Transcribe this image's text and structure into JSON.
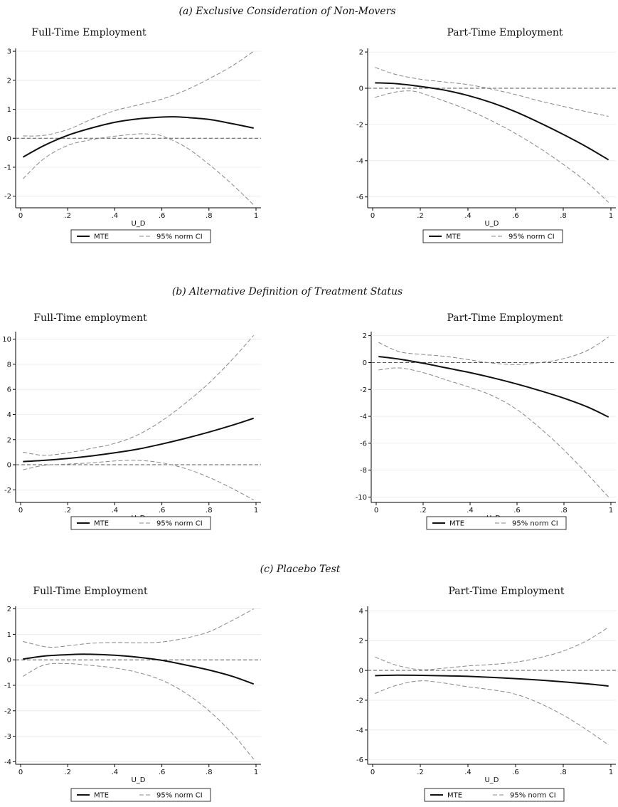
{
  "sections": [
    {
      "label": "(a) Exclusive Consideration of Non-Movers"
    },
    {
      "label": "(b) Alternative Definition of Treatment Status"
    },
    {
      "label": "(c) Placebo Test"
    }
  ],
  "legend": {
    "mte_label": "MTE",
    "ci_label": "95% norm CI"
  },
  "chart_data": [
    {
      "type": "line",
      "section": 0,
      "title": "Full-Time Employment",
      "xlabel": "U_D",
      "ylabel": "",
      "xlim": [
        0,
        1
      ],
      "ylim": [
        -2.4,
        3.1
      ],
      "yticks": [
        -2,
        -1,
        0,
        1,
        2,
        3
      ],
      "ytick_labels": [
        "-2",
        "-1",
        "0",
        "1",
        "2",
        "3"
      ],
      "xticks": [
        0,
        0.2,
        0.4,
        0.6,
        0.8,
        1
      ],
      "xtick_labels": [
        "0",
        ".2",
        ".4",
        ".6",
        ".8",
        "1"
      ],
      "reference_line": 0,
      "series": [
        {
          "name": "MTE",
          "x": [
            0.01,
            0.1,
            0.2,
            0.3,
            0.4,
            0.5,
            0.6,
            0.65,
            0.7,
            0.8,
            0.9,
            0.99
          ],
          "y": [
            -0.65,
            -0.25,
            0.1,
            0.35,
            0.55,
            0.67,
            0.73,
            0.74,
            0.72,
            0.65,
            0.5,
            0.35
          ]
        },
        {
          "name": "95% norm CI",
          "x": [
            0.01,
            0.1,
            0.2,
            0.3,
            0.4,
            0.5,
            0.6,
            0.7,
            0.8,
            0.9,
            0.99
          ],
          "y": [
            0.08,
            0.1,
            0.3,
            0.65,
            0.95,
            1.15,
            1.35,
            1.65,
            2.05,
            2.5,
            3.0
          ]
        },
        {
          "name": "95% norm CI",
          "x": [
            0.01,
            0.1,
            0.2,
            0.3,
            0.4,
            0.5,
            0.55,
            0.6,
            0.7,
            0.8,
            0.9,
            0.99
          ],
          "y": [
            -1.4,
            -0.7,
            -0.25,
            -0.05,
            0.07,
            0.15,
            0.14,
            0.08,
            -0.3,
            -0.9,
            -1.6,
            -2.3
          ]
        }
      ]
    },
    {
      "type": "line",
      "section": 0,
      "title": "Part-Time Employment",
      "xlabel": "U_D",
      "ylabel": "",
      "xlim": [
        0,
        1
      ],
      "ylim": [
        -6.6,
        2.2
      ],
      "yticks": [
        -6,
        -4,
        -2,
        0,
        2
      ],
      "ytick_labels": [
        "-6",
        "-4",
        "-2",
        "0",
        "2"
      ],
      "xticks": [
        0,
        0.2,
        0.4,
        0.6,
        0.8,
        1
      ],
      "xtick_labels": [
        "0",
        ".2",
        ".4",
        ".6",
        ".8",
        "1"
      ],
      "reference_line": 0,
      "series": [
        {
          "name": "MTE",
          "x": [
            0.01,
            0.1,
            0.2,
            0.3,
            0.4,
            0.5,
            0.6,
            0.7,
            0.8,
            0.9,
            0.99
          ],
          "y": [
            0.3,
            0.25,
            0.1,
            -0.1,
            -0.4,
            -0.8,
            -1.3,
            -1.9,
            -2.55,
            -3.25,
            -3.95
          ]
        },
        {
          "name": "95% norm CI",
          "x": [
            0.01,
            0.1,
            0.2,
            0.3,
            0.4,
            0.5,
            0.6,
            0.7,
            0.8,
            0.9,
            0.99
          ],
          "y": [
            1.15,
            0.75,
            0.5,
            0.35,
            0.2,
            -0.05,
            -0.35,
            -0.7,
            -1.0,
            -1.3,
            -1.55
          ]
        },
        {
          "name": "95% norm CI",
          "x": [
            0.01,
            0.1,
            0.16,
            0.2,
            0.3,
            0.4,
            0.5,
            0.6,
            0.7,
            0.8,
            0.9,
            0.99
          ],
          "y": [
            -0.5,
            -0.2,
            -0.15,
            -0.25,
            -0.7,
            -1.2,
            -1.8,
            -2.5,
            -3.3,
            -4.2,
            -5.2,
            -6.3
          ]
        }
      ]
    },
    {
      "type": "line",
      "section": 1,
      "title": "Full-Time employment",
      "xlabel": "U_D",
      "ylabel": "",
      "xlim": [
        0,
        1
      ],
      "ylim": [
        -3.0,
        10.6
      ],
      "yticks": [
        -2,
        0,
        2,
        4,
        6,
        8,
        10
      ],
      "ytick_labels": [
        "-2",
        "0",
        "2",
        "4",
        "6",
        "8",
        "10"
      ],
      "xticks": [
        0,
        0.2,
        0.4,
        0.6,
        0.8,
        1
      ],
      "xtick_labels": [
        "0",
        ".2",
        ".4",
        ".6",
        ".8",
        "1"
      ],
      "reference_line": 0,
      "series": [
        {
          "name": "MTE",
          "x": [
            0.01,
            0.1,
            0.2,
            0.3,
            0.4,
            0.5,
            0.6,
            0.7,
            0.8,
            0.9,
            0.99
          ],
          "y": [
            0.25,
            0.35,
            0.5,
            0.7,
            0.95,
            1.25,
            1.65,
            2.1,
            2.6,
            3.15,
            3.7
          ]
        },
        {
          "name": "95% norm CI",
          "x": [
            0.01,
            0.1,
            0.2,
            0.3,
            0.4,
            0.5,
            0.6,
            0.7,
            0.8,
            0.9,
            0.99
          ],
          "y": [
            1.0,
            0.75,
            0.95,
            1.3,
            1.7,
            2.4,
            3.5,
            4.9,
            6.5,
            8.4,
            10.3
          ]
        },
        {
          "name": "95% norm CI",
          "x": [
            0.01,
            0.1,
            0.2,
            0.3,
            0.4,
            0.5,
            0.6,
            0.7,
            0.8,
            0.9,
            0.99
          ],
          "y": [
            -0.4,
            -0.05,
            0.05,
            0.15,
            0.3,
            0.35,
            0.15,
            -0.3,
            -1.0,
            -1.9,
            -2.8
          ]
        }
      ]
    },
    {
      "type": "line",
      "section": 1,
      "title": "Part-Time Employment",
      "xlabel": "U_D",
      "ylabel": "",
      "xlim": [
        0,
        1
      ],
      "ylim": [
        -10.4,
        2.3
      ],
      "yticks": [
        -10,
        -8,
        -6,
        -4,
        -2,
        0,
        2
      ],
      "ytick_labels": [
        "-10",
        "-8",
        "-6",
        "-4",
        "-2",
        "0",
        "2"
      ],
      "xticks": [
        0,
        0.2,
        0.4,
        0.6,
        0.8,
        1
      ],
      "xtick_labels": [
        "0",
        ".2",
        ".4",
        ".6",
        ".8",
        "1"
      ],
      "reference_line": 0,
      "series": [
        {
          "name": "MTE",
          "x": [
            0.01,
            0.1,
            0.2,
            0.3,
            0.4,
            0.5,
            0.6,
            0.7,
            0.8,
            0.9,
            0.99
          ],
          "y": [
            0.45,
            0.25,
            -0.05,
            -0.4,
            -0.75,
            -1.15,
            -1.6,
            -2.1,
            -2.65,
            -3.3,
            -4.05
          ]
        },
        {
          "name": "95% norm CI",
          "x": [
            0.01,
            0.1,
            0.2,
            0.3,
            0.4,
            0.5,
            0.6,
            0.7,
            0.8,
            0.9,
            0.99
          ],
          "y": [
            1.5,
            0.8,
            0.6,
            0.45,
            0.2,
            -0.05,
            -0.15,
            0.0,
            0.3,
            0.9,
            1.9
          ]
        },
        {
          "name": "95% norm CI",
          "x": [
            0.01,
            0.1,
            0.2,
            0.3,
            0.4,
            0.5,
            0.6,
            0.7,
            0.8,
            0.9,
            0.99
          ],
          "y": [
            -0.55,
            -0.4,
            -0.75,
            -1.3,
            -1.85,
            -2.5,
            -3.5,
            -4.9,
            -6.5,
            -8.3,
            -10.0
          ]
        }
      ]
    },
    {
      "type": "line",
      "section": 2,
      "title": "Full-Time Employment",
      "xlabel": "U_D",
      "ylabel": "",
      "xlim": [
        0,
        1
      ],
      "ylim": [
        -4.1,
        2.1
      ],
      "yticks": [
        -4,
        -3,
        -2,
        -1,
        0,
        1,
        2
      ],
      "ytick_labels": [
        "-4",
        "-3",
        "-2",
        "-1",
        "0",
        "1",
        "2"
      ],
      "xticks": [
        0,
        0.2,
        0.4,
        0.6,
        0.8,
        1
      ],
      "xtick_labels": [
        "0",
        ".2",
        ".4",
        ".6",
        ".8",
        "1"
      ],
      "reference_line": 0,
      "series": [
        {
          "name": "MTE",
          "x": [
            0.01,
            0.1,
            0.2,
            0.28,
            0.4,
            0.5,
            0.6,
            0.7,
            0.8,
            0.9,
            0.99
          ],
          "y": [
            0.03,
            0.15,
            0.2,
            0.22,
            0.18,
            0.1,
            -0.02,
            -0.2,
            -0.4,
            -0.65,
            -0.95
          ]
        },
        {
          "name": "95% norm CI",
          "x": [
            0.01,
            0.1,
            0.15,
            0.2,
            0.3,
            0.4,
            0.5,
            0.6,
            0.7,
            0.8,
            0.9,
            0.99
          ],
          "y": [
            0.72,
            0.52,
            0.5,
            0.55,
            0.65,
            0.68,
            0.67,
            0.7,
            0.85,
            1.1,
            1.55,
            2.0
          ]
        },
        {
          "name": "95% norm CI",
          "x": [
            0.01,
            0.1,
            0.2,
            0.3,
            0.4,
            0.5,
            0.6,
            0.7,
            0.8,
            0.9,
            0.99
          ],
          "y": [
            -0.65,
            -0.2,
            -0.15,
            -0.22,
            -0.32,
            -0.5,
            -0.8,
            -1.3,
            -2.0,
            -2.9,
            -3.9
          ]
        }
      ]
    },
    {
      "type": "line",
      "section": 2,
      "title": "Part-Time Employment",
      "xlabel": "U_D",
      "ylabel": "",
      "xlim": [
        0,
        1
      ],
      "ylim": [
        -6.3,
        4.3
      ],
      "yticks": [
        -6,
        -4,
        -2,
        0,
        2,
        4
      ],
      "ytick_labels": [
        "-6",
        "-4",
        "-2",
        "0",
        "2",
        "4"
      ],
      "xticks": [
        0,
        0.2,
        0.4,
        0.6,
        0.8,
        1
      ],
      "xtick_labels": [
        "0",
        ".2",
        ".4",
        ".6",
        ".8",
        "1"
      ],
      "reference_line": 0,
      "series": [
        {
          "name": "MTE",
          "x": [
            0.01,
            0.1,
            0.2,
            0.3,
            0.4,
            0.5,
            0.6,
            0.7,
            0.8,
            0.9,
            0.99
          ],
          "y": [
            -0.35,
            -0.32,
            -0.33,
            -0.36,
            -0.4,
            -0.47,
            -0.55,
            -0.65,
            -0.77,
            -0.9,
            -1.05
          ]
        },
        {
          "name": "95% norm CI",
          "x": [
            0.01,
            0.1,
            0.2,
            0.3,
            0.4,
            0.5,
            0.6,
            0.7,
            0.8,
            0.9,
            0.99
          ],
          "y": [
            0.9,
            0.35,
            0.05,
            0.15,
            0.3,
            0.4,
            0.55,
            0.85,
            1.3,
            2.0,
            2.9
          ]
        },
        {
          "name": "95% norm CI",
          "x": [
            0.01,
            0.1,
            0.2,
            0.3,
            0.4,
            0.5,
            0.6,
            0.7,
            0.8,
            0.9,
            0.99
          ],
          "y": [
            -1.55,
            -1.0,
            -0.7,
            -0.85,
            -1.1,
            -1.3,
            -1.6,
            -2.2,
            -3.0,
            -4.0,
            -5.0
          ]
        }
      ]
    }
  ]
}
